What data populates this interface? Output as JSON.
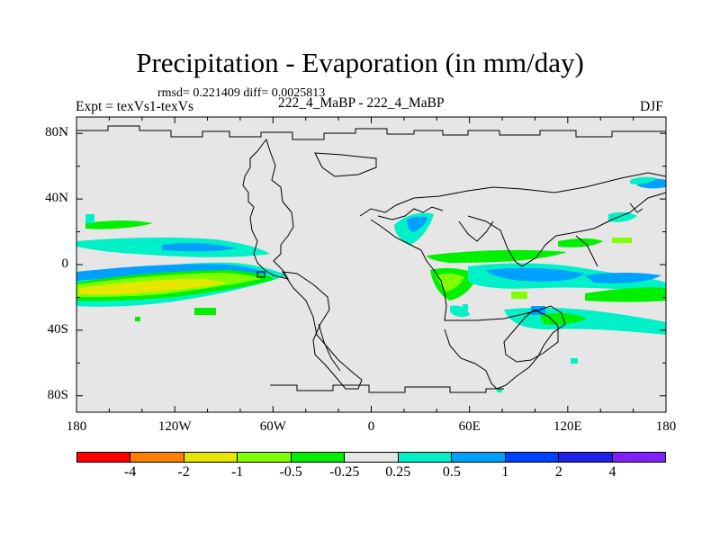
{
  "header": {
    "title": "Precipitation - Evaporation (in mm/day)",
    "stats": "rmsd= 0.221409 diff= 0.0025813",
    "experiment": "Expt = texVs1-texVs",
    "case_label": "222_4_MaBP - 222_4_MaBP",
    "season": "DJF"
  },
  "map": {
    "lat_ticks": [
      "80N",
      "40N",
      "0",
      "40S",
      "80S"
    ],
    "lat_values": [
      80,
      40,
      0,
      -40,
      -80
    ],
    "lon_ticks": [
      "180",
      "120W",
      "60W",
      "0",
      "60E",
      "120E",
      "180"
    ],
    "lon_values": [
      -180,
      -120,
      -60,
      0,
      60,
      120,
      180
    ],
    "lat_range": [
      -90,
      90
    ],
    "lon_range": [
      -180,
      180
    ],
    "background_color": "#e6e6e6"
  },
  "legend": {
    "colors": [
      "#ff0000",
      "#ff8000",
      "#e6e600",
      "#80ff00",
      "#00f000",
      "#e6e6e6",
      "#00f0c8",
      "#00a0ff",
      "#0040ff",
      "#2020e6",
      "#8020ff"
    ],
    "labels": [
      "-4",
      "-2",
      "-1",
      "-0.5",
      "-0.25",
      "0.25",
      "0.5",
      "1",
      "2",
      "4"
    ]
  }
}
